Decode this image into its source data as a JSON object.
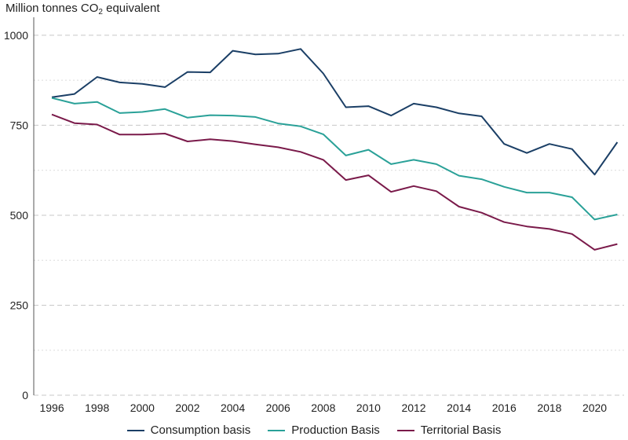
{
  "chart_data": {
    "type": "line",
    "ylabel_prefix": "Million tonnes CO",
    "ylabel_sub": "2",
    "ylabel_suffix": " equivalent",
    "ylim": [
      0,
      1050
    ],
    "xlim": [
      1995.2,
      2021.3
    ],
    "yticks": [
      0,
      250,
      500,
      750,
      1000
    ],
    "yticks_labels": [
      "0",
      "250",
      "500",
      "750",
      "1000"
    ],
    "xticks": [
      1996,
      1998,
      2000,
      2002,
      2004,
      2006,
      2008,
      2010,
      2012,
      2014,
      2016,
      2018,
      2020
    ],
    "xticks_labels": [
      "1996",
      "1998",
      "2000",
      "2002",
      "2004",
      "2006",
      "2008",
      "2010",
      "2012",
      "2014",
      "2016",
      "2018",
      "2020"
    ],
    "grid": "horizontal-dashed",
    "legend_position": "bottom",
    "x": [
      1996,
      1997,
      1998,
      1999,
      2000,
      2001,
      2002,
      2003,
      2004,
      2005,
      2006,
      2007,
      2008,
      2009,
      2010,
      2011,
      2012,
      2013,
      2014,
      2015,
      2016,
      2017,
      2018,
      2019,
      2020,
      2021
    ],
    "series": [
      {
        "name": "Consumption basis",
        "color": "#1b3f66",
        "values": [
          828,
          837,
          884,
          869,
          865,
          856,
          898,
          897,
          957,
          947,
          949,
          962,
          894,
          800,
          803,
          777,
          810,
          800,
          783,
          775,
          698,
          673,
          698,
          684,
          613,
          703
        ]
      },
      {
        "name": "Production Basis",
        "color": "#2aa198",
        "values": [
          826,
          810,
          815,
          784,
          787,
          795,
          771,
          778,
          777,
          773,
          755,
          747,
          725,
          666,
          682,
          642,
          654,
          642,
          610,
          600,
          579,
          563,
          563,
          550,
          488,
          502
        ]
      },
      {
        "name": "Territorial Basis",
        "color": "#7a1a4a",
        "values": [
          780,
          756,
          752,
          724,
          724,
          727,
          705,
          711,
          706,
          697,
          689,
          676,
          654,
          598,
          611,
          565,
          581,
          567,
          524,
          507,
          481,
          469,
          462,
          448,
          404,
          420
        ]
      }
    ]
  }
}
